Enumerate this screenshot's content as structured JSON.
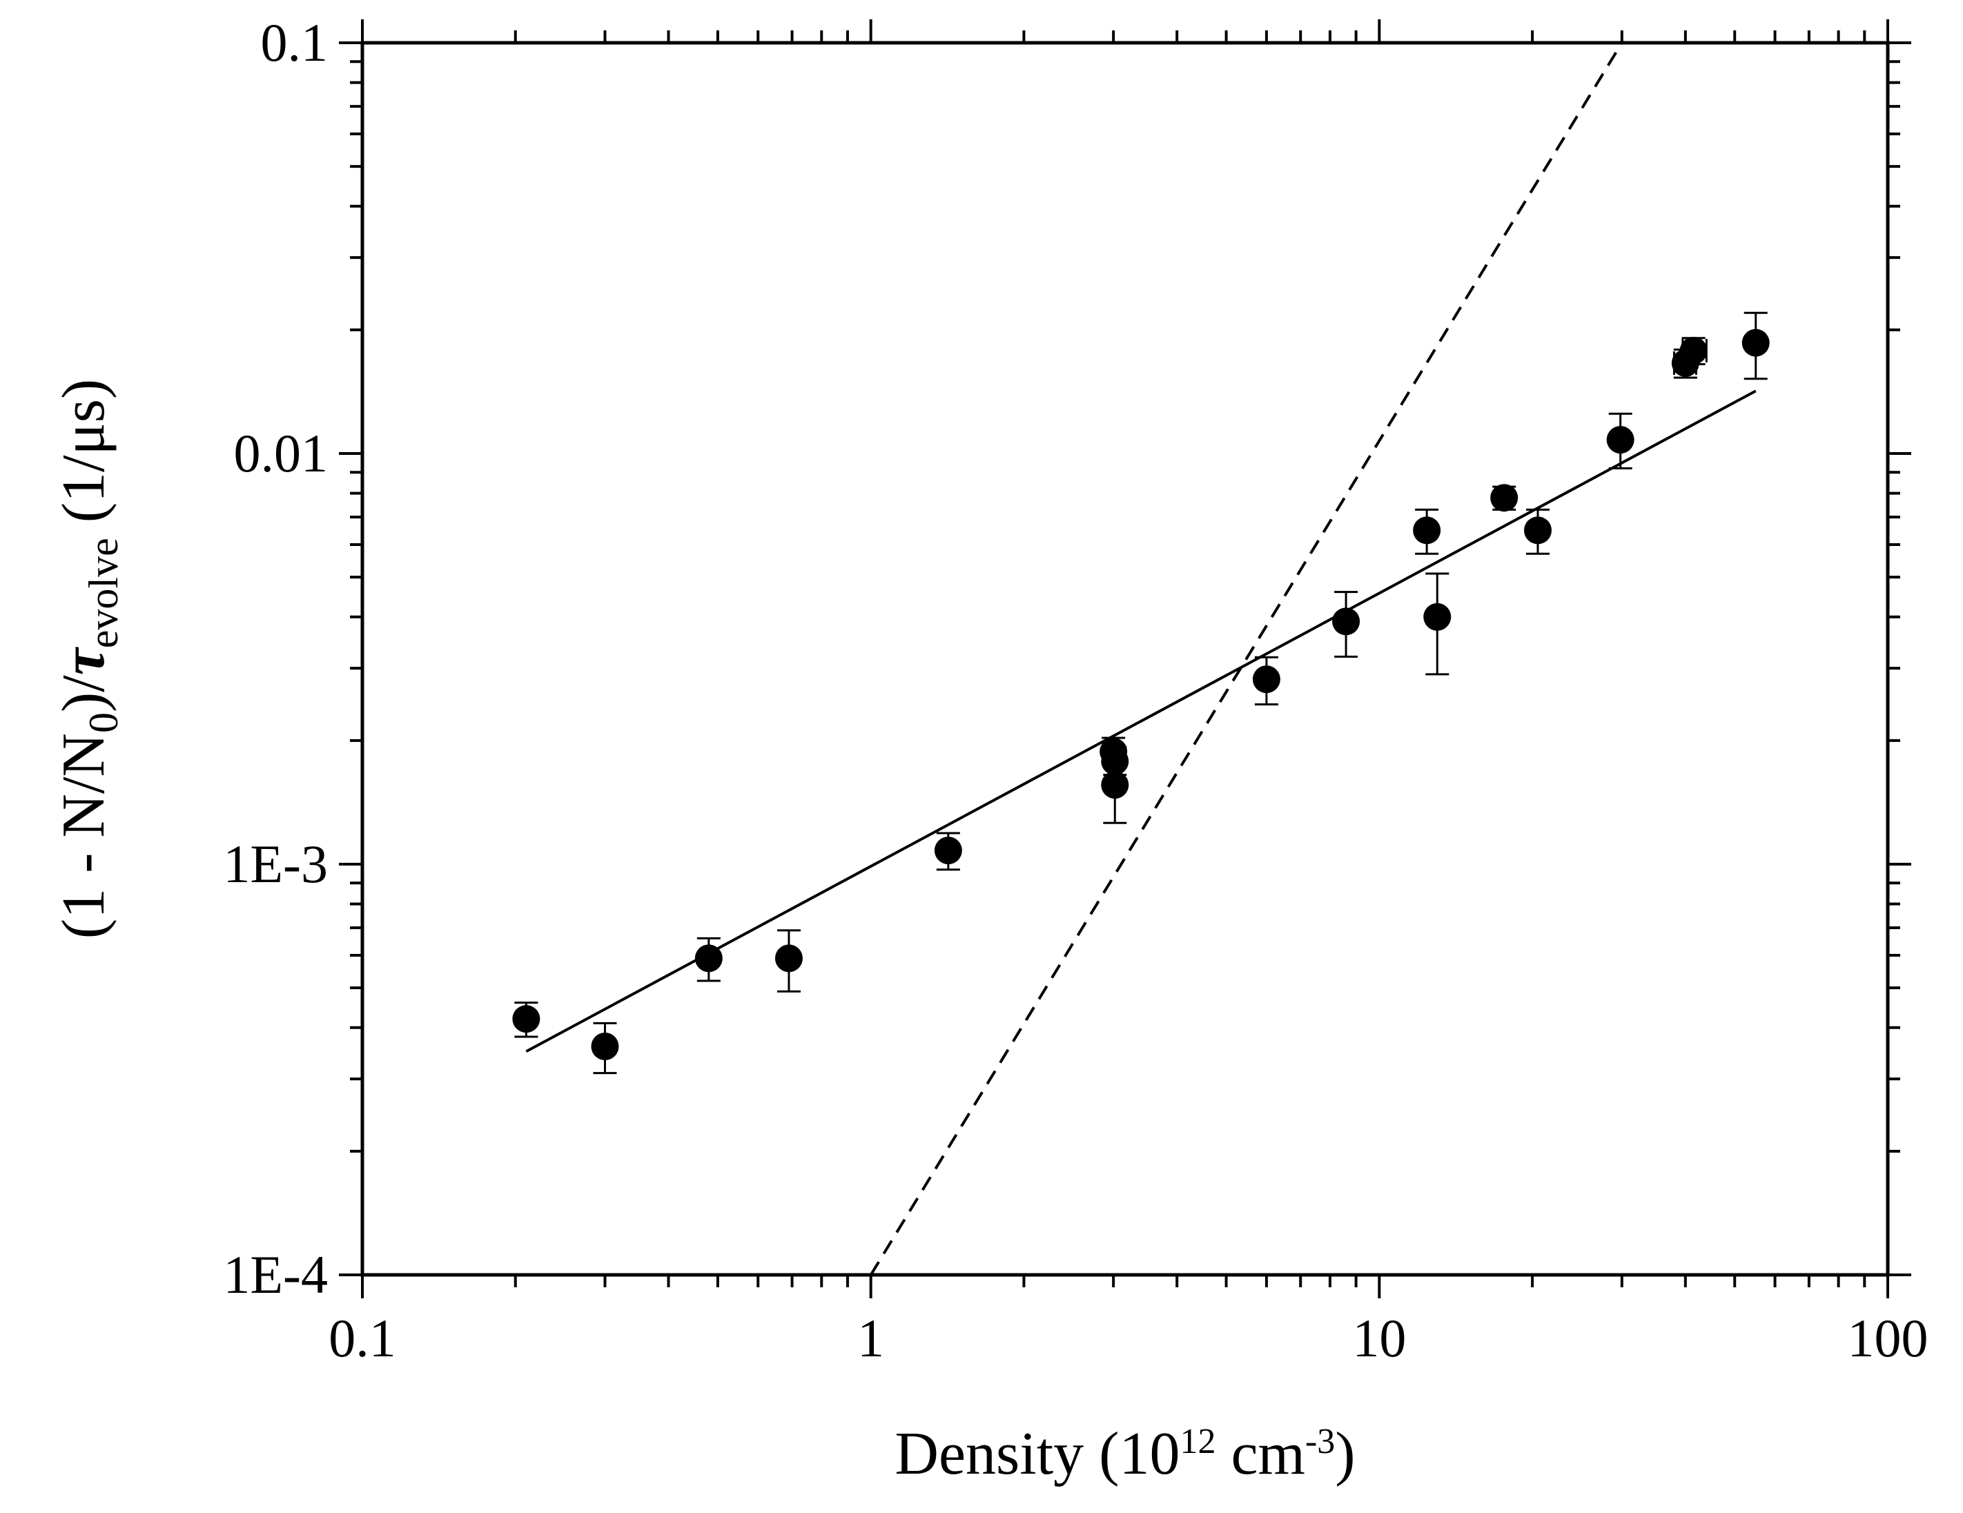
{
  "chart_data": {
    "type": "scatter",
    "title": "",
    "xlabel": {
      "main": "Density (10",
      "sup1": "12",
      "mid": " cm",
      "sup2": "-3",
      "end": ")"
    },
    "ylabel": {
      "p1": "(1 - N/N",
      "sub0": "0",
      "p2": ")/",
      "tau": "τ",
      "sub_ev": "evolve",
      "p3": " (1/μs)"
    },
    "xscale": "log",
    "yscale": "log",
    "xlim": [
      0.1,
      100
    ],
    "ylim": [
      0.0001,
      0.1
    ],
    "x_ticks": [
      {
        "value": 0.1,
        "label": "0.1"
      },
      {
        "value": 1,
        "label": "1"
      },
      {
        "value": 10,
        "label": "10"
      },
      {
        "value": 100,
        "label": "100"
      }
    ],
    "y_ticks": [
      {
        "value": 0.0001,
        "label": "1E-4"
      },
      {
        "value": 0.001,
        "label": "1E-3"
      },
      {
        "value": 0.01,
        "label": "0.01"
      },
      {
        "value": 0.1,
        "label": "0.1"
      }
    ],
    "grid": false,
    "series": [
      {
        "name": "data",
        "style": "filled-circle",
        "color": "#000000",
        "points": [
          {
            "x": 0.21,
            "y": 0.00042,
            "ylo": 0.00038,
            "yhi": 0.00046
          },
          {
            "x": 0.3,
            "y": 0.00036,
            "ylo": 0.00031,
            "yhi": 0.00041
          },
          {
            "x": 0.48,
            "y": 0.00059,
            "ylo": 0.00052,
            "yhi": 0.00066
          },
          {
            "x": 0.69,
            "y": 0.00059,
            "ylo": 0.00049,
            "yhi": 0.00069
          },
          {
            "x": 1.42,
            "y": 0.00108,
            "ylo": 0.00097,
            "yhi": 0.00119
          },
          {
            "x": 3.0,
            "y": 0.00188,
            "ylo": 0.00175,
            "yhi": 0.00203
          },
          {
            "x": 3.02,
            "y": 0.00178,
            "ylo": 0.00165,
            "yhi": 0.00193
          },
          {
            "x": 3.02,
            "y": 0.00156,
            "ylo": 0.00126,
            "yhi": 0.00186
          },
          {
            "x": 6.0,
            "y": 0.00282,
            "ylo": 0.00245,
            "yhi": 0.00319
          },
          {
            "x": 8.6,
            "y": 0.0039,
            "ylo": 0.0032,
            "yhi": 0.0046
          },
          {
            "x": 12.4,
            "y": 0.0065,
            "ylo": 0.0057,
            "yhi": 0.0073
          },
          {
            "x": 13.0,
            "y": 0.004,
            "ylo": 0.0029,
            "yhi": 0.0051
          },
          {
            "x": 17.6,
            "y": 0.0078,
            "ylo": 0.0073,
            "yhi": 0.0083
          },
          {
            "x": 20.5,
            "y": 0.0065,
            "ylo": 0.0057,
            "yhi": 0.0073
          },
          {
            "x": 29.8,
            "y": 0.0108,
            "ylo": 0.0092,
            "yhi": 0.0125
          },
          {
            "x": 40.0,
            "y": 0.0166,
            "ylo": 0.0153,
            "yhi": 0.0179,
            "xlo": 38.0,
            "xhi": 42.0
          },
          {
            "x": 41.5,
            "y": 0.0178,
            "ylo": 0.0165,
            "yhi": 0.0191,
            "xlo": 39.5,
            "xhi": 44.0
          },
          {
            "x": 55.0,
            "y": 0.0186,
            "ylo": 0.0152,
            "yhi": 0.022
          }
        ]
      },
      {
        "name": "fit-solid",
        "style": "solid-line",
        "color": "#000000",
        "x": [
          0.21,
          55.0
        ],
        "y": [
          0.00035,
          0.0142
        ]
      },
      {
        "name": "fit-dashed",
        "style": "dashed-line",
        "color": "#000000",
        "x": [
          1.0,
          30.0
        ],
        "y": [
          0.0001,
          0.1
        ]
      }
    ]
  }
}
